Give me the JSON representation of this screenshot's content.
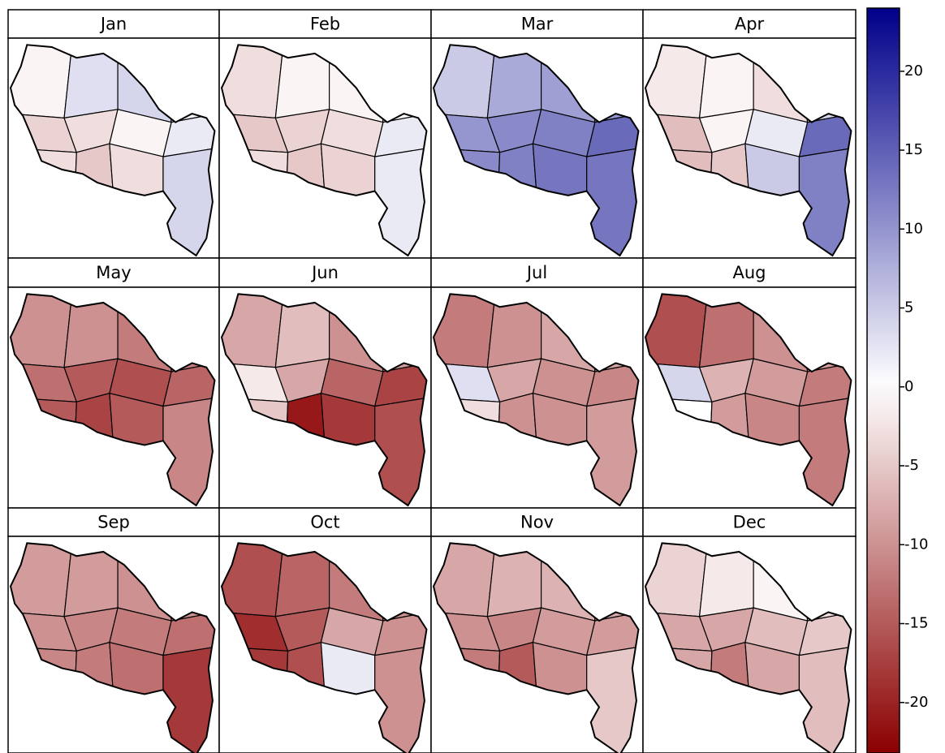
{
  "panels": [
    {
      "title": "Jan",
      "values": [
        -1,
        3,
        4,
        1,
        -4,
        -3,
        -1,
        2,
        -3,
        -5,
        -3,
        4
      ]
    },
    {
      "title": "Feb",
      "values": [
        -3,
        -1,
        -1,
        0,
        -5,
        -4,
        -3,
        2,
        -3,
        -5,
        -4,
        2
      ]
    },
    {
      "title": "Mar",
      "values": [
        5,
        8,
        9,
        10,
        10,
        11,
        12,
        14,
        11,
        12,
        13,
        13
      ]
    },
    {
      "title": "Apr",
      "values": [
        -2,
        -1,
        -3,
        4,
        -6,
        -1,
        2,
        14,
        -6,
        -5,
        5,
        12
      ]
    },
    {
      "title": "May",
      "values": [
        -10,
        -10,
        -12,
        -12,
        -13,
        -15,
        -16,
        -14,
        -15,
        -17,
        -15,
        -11
      ]
    },
    {
      "title": "Jun",
      "values": [
        -8,
        -6,
        -10,
        -9,
        -2,
        -8,
        -14,
        -17,
        -5,
        -21,
        -18,
        -16
      ]
    },
    {
      "title": "Jul",
      "values": [
        -12,
        -10,
        -8,
        -8,
        3,
        -8,
        -10,
        -11,
        -3,
        -10,
        -10,
        -9
      ]
    },
    {
      "title": "Aug",
      "values": [
        -16,
        -13,
        -10,
        -9,
        4,
        -7,
        -9,
        -12,
        0,
        -9,
        -11,
        -12
      ]
    },
    {
      "title": "Sep",
      "values": [
        -9,
        -9,
        -10,
        -10,
        -10,
        -11,
        -12,
        -13,
        -11,
        -12,
        -13,
        -18
      ]
    },
    {
      "title": "Oct",
      "values": [
        -16,
        -14,
        -12,
        -10,
        -19,
        -15,
        -8,
        -10,
        -18,
        -16,
        2,
        -10
      ]
    },
    {
      "title": "Nov",
      "values": [
        -8,
        -7,
        -7,
        -8,
        -10,
        -11,
        -9,
        -9,
        -12,
        -15,
        -10,
        -5
      ]
    },
    {
      "title": "Dec",
      "values": [
        -4,
        -2,
        -1,
        -3,
        -8,
        -8,
        -6,
        -5,
        -8,
        -12,
        -8,
        -6
      ]
    }
  ],
  "colorbar": {
    "lim": [
      -23.2,
      24
    ],
    "ticks": [
      20,
      15,
      10,
      5,
      0,
      -5,
      -10,
      -15,
      -20
    ],
    "low_color": "#8b0000",
    "mid_color": "#ffffff",
    "high_color": "#00008b"
  }
}
